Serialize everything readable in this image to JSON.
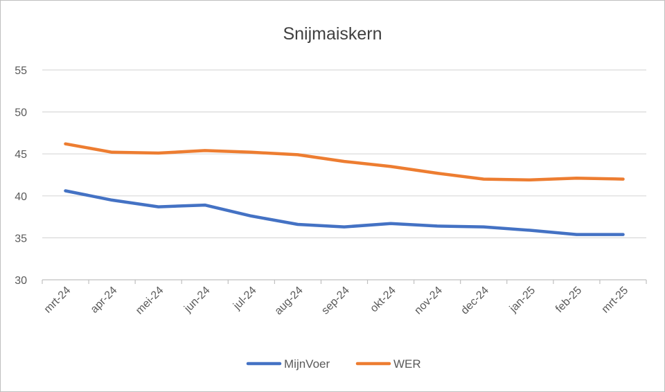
{
  "chart_data": {
    "type": "line",
    "title": "Snijmaiskern",
    "xlabel": "",
    "ylabel": "",
    "categories": [
      "mrt-24",
      "apr-24",
      "mei-24",
      "jun-24",
      "jul-24",
      "aug-24",
      "sep-24",
      "okt-24",
      "nov-24",
      "dec-24",
      "jan-25",
      "feb-25",
      "mrt-25"
    ],
    "ylim": [
      30,
      55
    ],
    "yticks": [
      "30",
      "35",
      "40",
      "45",
      "50",
      "55"
    ],
    "grid": true,
    "legend_position": "bottom",
    "series": [
      {
        "name": "MijnVoer",
        "color": "#4472c4",
        "values": [
          40.6,
          39.5,
          38.7,
          38.9,
          37.6,
          36.6,
          36.3,
          36.7,
          36.4,
          36.3,
          35.9,
          35.4,
          35.4
        ]
      },
      {
        "name": "WER",
        "color": "#ed7d31",
        "values": [
          46.2,
          45.2,
          45.1,
          45.4,
          45.2,
          44.9,
          44.1,
          43.5,
          42.7,
          42.0,
          41.9,
          42.1,
          42.0
        ]
      }
    ]
  }
}
